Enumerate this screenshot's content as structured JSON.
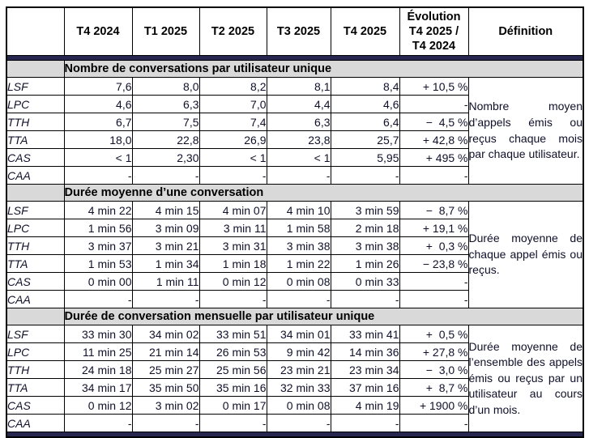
{
  "colors": {
    "bar_navy": "#26264f",
    "section_gray": "#d9d9d9",
    "border_black": "#000000",
    "text": "#10102a"
  },
  "table": {
    "header": {
      "corner": "",
      "quarters": [
        "T4 2024",
        "T1 2025",
        "T2 2025",
        "T3 2025",
        "T4 2025"
      ],
      "evolution_lines": [
        "Évolution",
        "T4 2025 /",
        "T4 2024"
      ],
      "definition": "Définition"
    },
    "sections": [
      {
        "title": "Nombre de conversations par utilisateur unique",
        "definition": "Nombre moyen d’appels émis ou reçus chaque mois par chaque utilisateur.",
        "rows": [
          {
            "label": "LSF",
            "values": [
              "7,6",
              "8,0",
              "8,2",
              "8,1",
              "8,4"
            ],
            "evolution": "+ 10,5 %"
          },
          {
            "label": "LPC",
            "values": [
              "4,6",
              "6,3",
              "7,0",
              "4,4",
              "4,6"
            ],
            "evolution": "-"
          },
          {
            "label": "TTH",
            "values": [
              "6,7",
              "7,5",
              "7,4",
              "6,3",
              "6,4"
            ],
            "evolution": "−  4,5 %"
          },
          {
            "label": "TTA",
            "values": [
              "18,0",
              "22,8",
              "26,9",
              "23,8",
              "25,7"
            ],
            "evolution": "+ 42,8 %"
          },
          {
            "label": "CAS",
            "values": [
              "< 1",
              "2,30",
              "< 1",
              "< 1",
              "5,95"
            ],
            "evolution": "+ 495 %"
          },
          {
            "label": "CAA",
            "values": [
              "-",
              "-",
              "-",
              "-",
              "-"
            ],
            "evolution": "-"
          }
        ]
      },
      {
        "title": "Durée moyenne d’une conversation",
        "definition": "Durée moyenne de chaque appel émis ou reçus.",
        "rows": [
          {
            "label": "LSF",
            "values": [
              "4 min 22",
              "4 min 15",
              "4 min 07",
              "4 min 10",
              "3 min 59"
            ],
            "evolution": "−  8,7 %"
          },
          {
            "label": "LPC",
            "values": [
              "1 min 56",
              "3 min 09",
              "3 min 11",
              "1 min 58",
              "2 min 18"
            ],
            "evolution": "+ 19,1 %"
          },
          {
            "label": "TTH",
            "values": [
              "3 min 37",
              "3 min 21",
              "3 min 31",
              "3 min 38",
              "3 min 38"
            ],
            "evolution": "+  0,3 %"
          },
          {
            "label": "TTA",
            "values": [
              "1 min 53",
              "1 min 34",
              "1 min 18",
              "1 min 22",
              "1 min 26"
            ],
            "evolution": "− 23,8 %"
          },
          {
            "label": "CAS",
            "values": [
              "0 min 00",
              "1 min 11",
              "0 min 12",
              "0 min 08",
              "0 min 33"
            ],
            "evolution": "-"
          },
          {
            "label": "CAA",
            "values": [
              "-",
              "-",
              "-",
              "-",
              "-"
            ],
            "evolution": "-"
          }
        ]
      },
      {
        "title": "Durée de conversation mensuelle par utilisateur unique",
        "definition": "Durée moyenne de l’ensemble des appels émis ou reçus par un utilisateur au cours d’un mois.",
        "rows": [
          {
            "label": "LSF",
            "values": [
              "33 min 30",
              "34 min 02",
              "33 min 51",
              "34 min 01",
              "33 min 41"
            ],
            "evolution": "+  0,5 %"
          },
          {
            "label": "LPC",
            "values": [
              "11 min 25",
              "21 min 14",
              "26 min 53",
              "9 min 42",
              "14 min 36"
            ],
            "evolution": "+ 27,8 %"
          },
          {
            "label": "TTH",
            "values": [
              "24 min 18",
              "25 min 27",
              "25 min 56",
              "23 min 21",
              "23 min 34"
            ],
            "evolution": "−  3,0 %"
          },
          {
            "label": "TTA",
            "values": [
              "34 min 17",
              "35 min 50",
              "35 min 16",
              "32 min 33",
              "37 min 16"
            ],
            "evolution": "+  8,7 %"
          },
          {
            "label": "CAS",
            "values": [
              "0 min 12",
              "3 min 02",
              "0 min 17",
              "0 min 08",
              "4 min 19"
            ],
            "evolution": "+ 1900 %"
          },
          {
            "label": "CAA",
            "values": [
              "-",
              "-",
              "-",
              "-",
              "-"
            ],
            "evolution": "-"
          }
        ]
      }
    ]
  }
}
